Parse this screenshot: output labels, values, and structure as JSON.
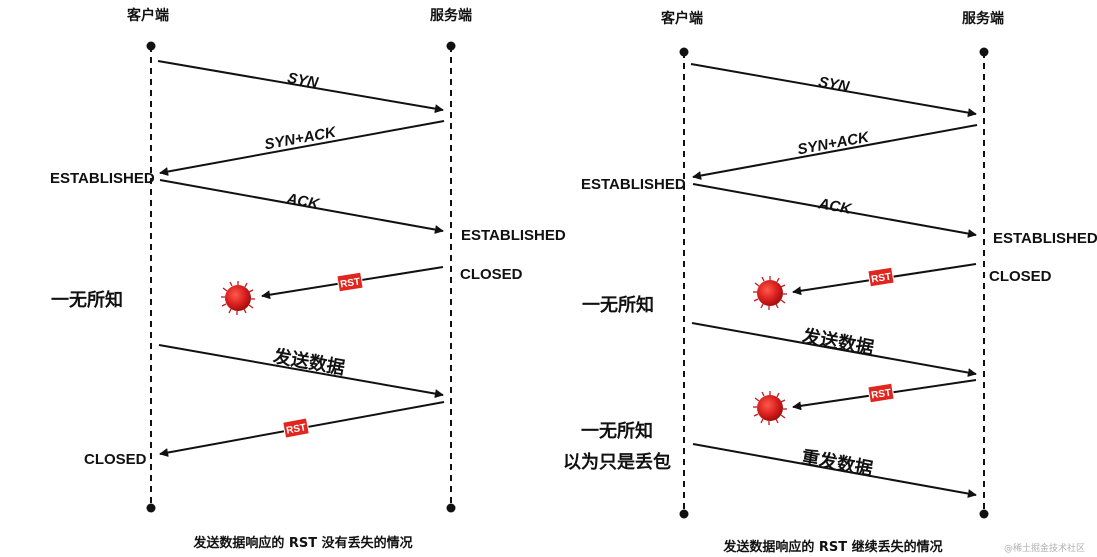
{
  "left": {
    "client_label": "客户端",
    "server_label": "服务端",
    "syn": "SYN",
    "synack": "SYN+ACK",
    "ack": "ACK",
    "client_established": "ESTABLISHED",
    "server_established": "ESTABLISHED",
    "server_closed": "CLOSED",
    "rst1": "RST",
    "unaware": "一无所知",
    "send_data": "发送数据",
    "rst2": "RST",
    "client_closed": "CLOSED",
    "caption": "发送数据响应的 RST 没有丢失的情况"
  },
  "right": {
    "client_label": "客户端",
    "server_label": "服务端",
    "syn": "SYN",
    "synack": "SYN+ACK",
    "ack": "ACK",
    "client_established": "ESTABLISHED",
    "server_established": "ESTABLISHED",
    "server_closed": "CLOSED",
    "rst1": "RST",
    "unaware": "一无所知",
    "send_data": "发送数据",
    "rst2": "RST",
    "unaware2_line1": "一无所知",
    "unaware2_line2": "以为只是丢包",
    "resend_data": "重发数据",
    "caption": "发送数据响应的 RST 继续丢失的情况"
  },
  "watermark": "@稀土掘金技术社区",
  "colors": {
    "line": "#111111",
    "rst_bg": "#e0261e",
    "lost_packet": "#d81e1e"
  }
}
